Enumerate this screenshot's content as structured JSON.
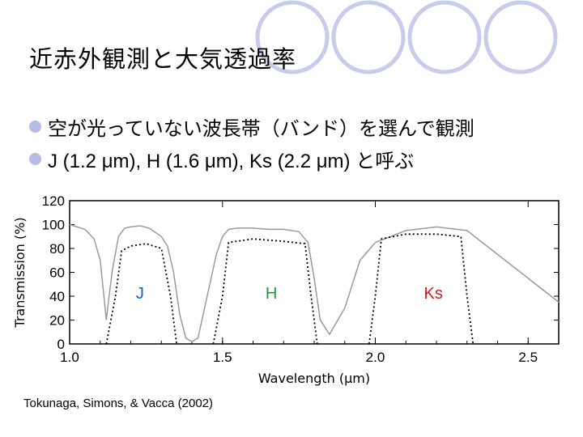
{
  "slide": {
    "title": "近赤外観測と大気透過率",
    "bullets": [
      "空が光っていない波長帯（バンド）を選んで観測",
      "J (1.2 μm), H (1.6 μm), Ks (2.2 μm) と呼ぶ"
    ],
    "citation": "Tokunaga, Simons, & Vacca (2002)"
  },
  "colors": {
    "ring": "#c8cbea",
    "bullet": "#b8bce4",
    "J": "#1a5cc8",
    "H": "#1f9a2e",
    "Ks": "#cc1f1f"
  },
  "chart_data": {
    "type": "line",
    "xlabel": "Wavelength (μm)",
    "ylabel": "Transmission (%)",
    "xlim": [
      1.0,
      2.6
    ],
    "ylim": [
      0,
      120
    ],
    "x_ticks": [
      "1.0",
      "1.5",
      "2.0",
      "2.5"
    ],
    "y_ticks": [
      "0",
      "20",
      "40",
      "60",
      "80",
      "100",
      "120"
    ],
    "band_labels": [
      "J",
      "H",
      "Ks"
    ],
    "atmosphere": {
      "x": [
        1.0,
        1.05,
        1.08,
        1.1,
        1.12,
        1.13,
        1.14,
        1.16,
        1.18,
        1.2,
        1.23,
        1.26,
        1.3,
        1.32,
        1.34,
        1.36,
        1.38,
        1.4,
        1.42,
        1.45,
        1.48,
        1.5,
        1.52,
        1.55,
        1.6,
        1.65,
        1.7,
        1.75,
        1.78,
        1.8,
        1.82,
        1.85,
        1.9,
        1.95,
        2.0,
        2.05,
        2.1,
        2.2,
        2.3,
        2.35,
        2.4,
        2.45,
        2.5,
        2.55,
        2.6
      ],
      "y": [
        100,
        96,
        88,
        70,
        20,
        42,
        62,
        90,
        97,
        98,
        99,
        97,
        90,
        82,
        60,
        25,
        5,
        2,
        5,
        40,
        75,
        90,
        96,
        97,
        97,
        96,
        96,
        94,
        85,
        55,
        20,
        8,
        30,
        70,
        85,
        90,
        95,
        98,
        95,
        85,
        75,
        65,
        55,
        45,
        35
      ]
    },
    "filters": [
      {
        "name": "J",
        "x": [
          1.12,
          1.15,
          1.17,
          1.2,
          1.25,
          1.3,
          1.33,
          1.35
        ],
        "y": [
          0,
          40,
          78,
          82,
          84,
          80,
          40,
          0
        ]
      },
      {
        "name": "H",
        "x": [
          1.47,
          1.5,
          1.52,
          1.6,
          1.7,
          1.77,
          1.79,
          1.81
        ],
        "y": [
          0,
          40,
          85,
          88,
          86,
          84,
          40,
          0
        ]
      },
      {
        "name": "Ks",
        "x": [
          1.98,
          2.0,
          2.02,
          2.1,
          2.2,
          2.28,
          2.3,
          2.32
        ],
        "y": [
          0,
          40,
          88,
          92,
          92,
          90,
          40,
          0
        ]
      }
    ]
  }
}
